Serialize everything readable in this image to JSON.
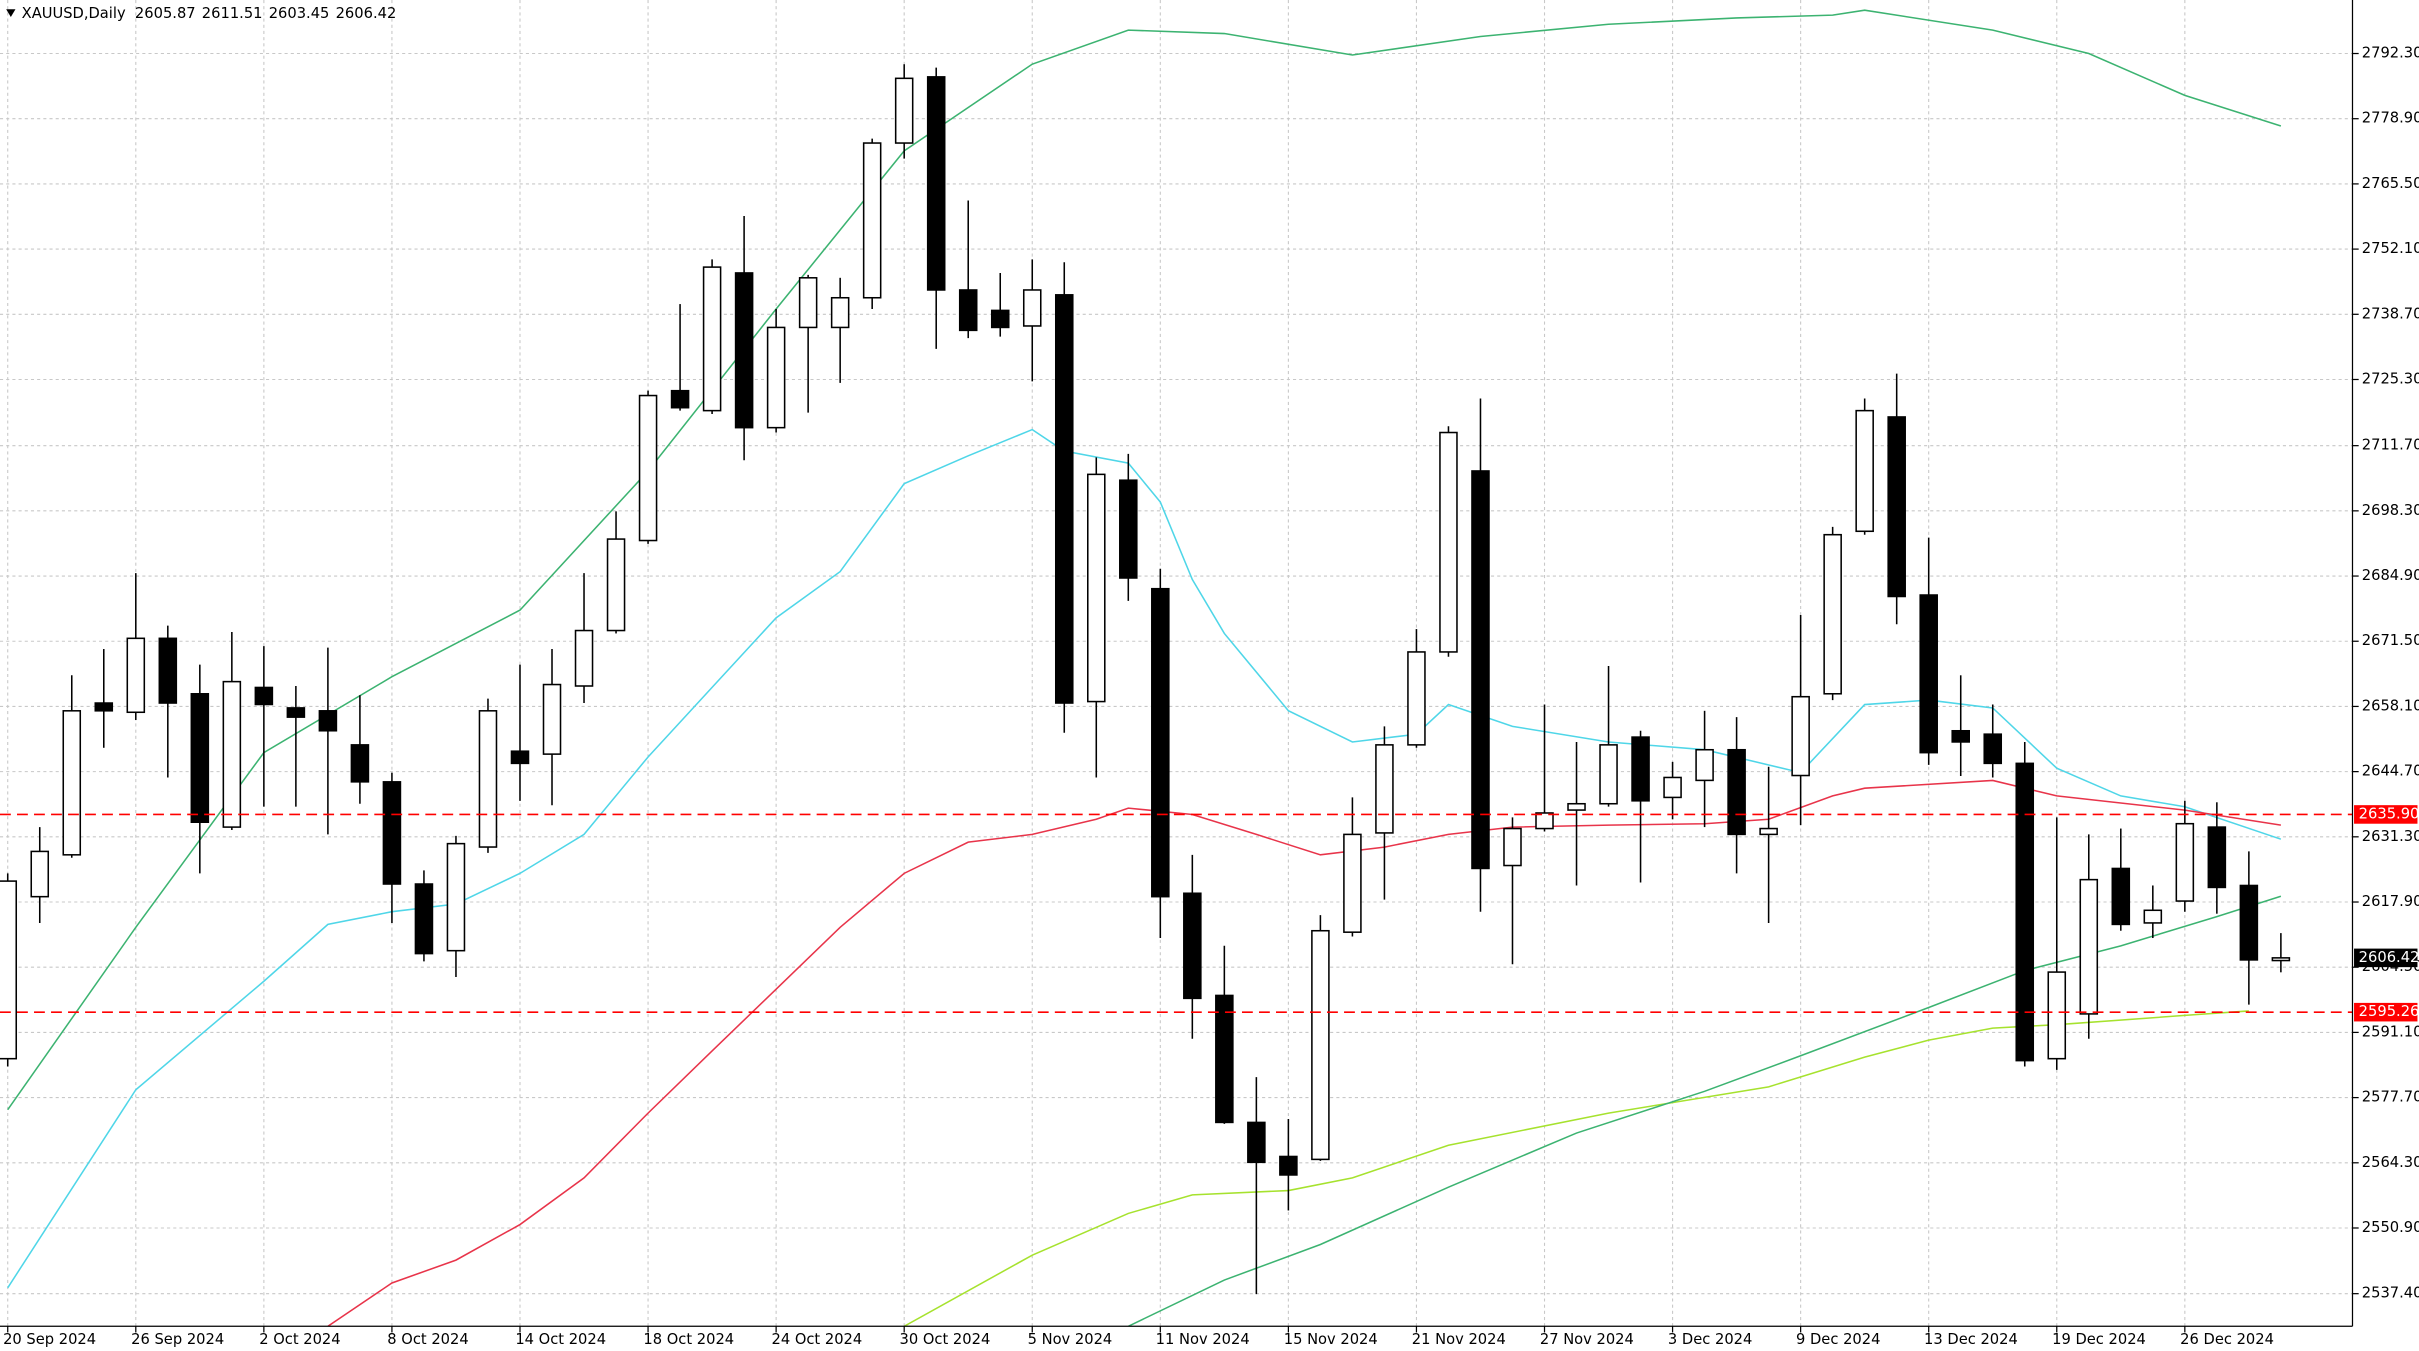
{
  "chart_data": {
    "type": "candlestick",
    "title": "XAUUSD,Daily",
    "categories": [
      "20 Sep 2024",
      null,
      null,
      null,
      "26 Sep 2024",
      null,
      null,
      null,
      "2 Oct 2024",
      null,
      null,
      null,
      "8 Oct 2024",
      null,
      null,
      null,
      "14 Oct 2024",
      null,
      null,
      null,
      "18 Oct 2024",
      null,
      null,
      null,
      "24 Oct 2024",
      null,
      null,
      null,
      "30 Oct 2024",
      null,
      null,
      null,
      "5 Nov 2024",
      null,
      null,
      null,
      "11 Nov 2024",
      null,
      null,
      null,
      "15 Nov 2024",
      null,
      null,
      null,
      "21 Nov 2024",
      null,
      null,
      null,
      "27 Nov 2024",
      null,
      null,
      null,
      "3 Dec 2024",
      null,
      null,
      null,
      "9 Dec 2024",
      null,
      null,
      null,
      "13 Dec 2024",
      null,
      null,
      null,
      "19 Dec 2024",
      null,
      null,
      null,
      "26 Dec 2024",
      null,
      null,
      null
    ],
    "open": [
      2585.7,
      2619.0,
      2627.6,
      2658.8,
      2656.9,
      2672.1,
      2660.7,
      2633.3,
      2662.0,
      2657.8,
      2657.2,
      2650.2,
      2642.6,
      2621.6,
      2607.9,
      2629.2,
      2648.9,
      2648.3,
      2662.3,
      2673.7,
      2692.2,
      2723.0,
      2718.9,
      2747.2,
      2715.4,
      2736.0,
      2736.0,
      2742.1,
      2773.9,
      2787.5,
      2743.7,
      2739.5,
      2736.3,
      2742.7,
      2659.1,
      2704.6,
      2682.3,
      2619.7,
      2598.7,
      2572.6,
      2565.6,
      2565.0,
      2611.7,
      2632.1,
      2650.2,
      2669.3,
      2706.5,
      2625.4,
      2633.0,
      2636.8,
      2638.1,
      2651.8,
      2639.4,
      2642.9,
      2649.2,
      2631.8,
      2643.9,
      2660.7,
      2694.1,
      2717.6,
      2681.0,
      2653.1,
      2652.4,
      2646.4,
      2585.7,
      2594.9,
      2624.8,
      2613.6,
      2618.1,
      2633.3,
      2621.3,
      2605.87
    ],
    "high": [
      2623.8,
      2633.3,
      2664.5,
      2669.9,
      2685.5,
      2674.7,
      2666.7,
      2673.4,
      2670.5,
      2662.3,
      2670.2,
      2660.4,
      2644.5,
      2624.4,
      2631.5,
      2659.7,
      2666.7,
      2669.9,
      2685.5,
      2698.2,
      2723.0,
      2740.8,
      2750.0,
      2758.9,
      2739.8,
      2746.8,
      2746.2,
      2774.8,
      2790.1,
      2789.4,
      2762.1,
      2747.2,
      2750.0,
      2749.4,
      2709.3,
      2710.0,
      2686.4,
      2627.6,
      2608.9,
      2581.9,
      2573.3,
      2615.2,
      2639.4,
      2654.0,
      2674.0,
      2715.7,
      2721.4,
      2635.3,
      2658.5,
      2650.8,
      2666.4,
      2653.1,
      2646.7,
      2657.2,
      2655.9,
      2645.7,
      2676.9,
      2695.0,
      2721.4,
      2726.5,
      2692.8,
      2664.5,
      2658.5,
      2650.8,
      2635.3,
      2631.8,
      2633.0,
      2621.3,
      2638.7,
      2638.4,
      2628.3,
      2611.51
    ],
    "low": [
      2584.1,
      2613.6,
      2627.0,
      2649.6,
      2655.3,
      2643.5,
      2623.8,
      2632.7,
      2637.5,
      2637.5,
      2631.8,
      2638.1,
      2613.6,
      2605.7,
      2602.5,
      2628.0,
      2638.7,
      2637.8,
      2658.8,
      2673.1,
      2691.5,
      2718.9,
      2718.2,
      2708.7,
      2714.4,
      2718.5,
      2724.6,
      2739.8,
      2770.7,
      2731.6,
      2733.8,
      2734.1,
      2724.9,
      2652.7,
      2643.5,
      2679.8,
      2610.5,
      2589.8,
      2572.3,
      2537.3,
      2554.5,
      2564.7,
      2610.8,
      2618.4,
      2649.6,
      2668.3,
      2615.9,
      2605.1,
      2632.4,
      2621.3,
      2637.5,
      2621.9,
      2634.9,
      2633.3,
      2623.8,
      2613.6,
      2633.7,
      2659.4,
      2693.4,
      2675.0,
      2646.1,
      2643.8,
      2643.5,
      2584.1,
      2583.4,
      2589.8,
      2612.0,
      2610.5,
      2615.9,
      2615.5,
      2596.8,
      2603.45
    ],
    "close": [
      2622.2,
      2628.3,
      2657.2,
      2657.2,
      2672.1,
      2658.8,
      2634.3,
      2663.2,
      2658.5,
      2655.9,
      2653.1,
      2642.6,
      2621.6,
      2607.3,
      2629.9,
      2657.2,
      2646.4,
      2662.6,
      2673.7,
      2692.5,
      2722.0,
      2719.5,
      2748.4,
      2715.4,
      2736.0,
      2746.2,
      2742.1,
      2773.9,
      2787.2,
      2743.7,
      2735.4,
      2736.0,
      2743.7,
      2658.8,
      2705.8,
      2684.5,
      2619.0,
      2598.1,
      2572.6,
      2564.4,
      2561.8,
      2612.0,
      2631.8,
      2650.2,
      2669.3,
      2714.4,
      2624.8,
      2633.0,
      2636.2,
      2638.1,
      2650.2,
      2638.7,
      2643.5,
      2649.2,
      2631.8,
      2633.0,
      2660.1,
      2693.4,
      2718.9,
      2680.7,
      2648.6,
      2650.8,
      2646.4,
      2585.3,
      2603.5,
      2622.5,
      2613.3,
      2616.2,
      2634.0,
      2620.9,
      2606.0,
      2606.42
    ],
    "up_color": "#ffffff",
    "down_color": "#000000",
    "overlays": [
      {
        "color": "#3cb371",
        "x": [
          0,
          4,
          8,
          12,
          16,
          20,
          24,
          28,
          32,
          35,
          38,
          42,
          46,
          50,
          54,
          57,
          58,
          62,
          65,
          68,
          71
        ],
        "values": [
          2575.2,
          2612.7,
          2648.6,
          2664.2,
          2677.9,
          2706.5,
          2739.8,
          2772.3,
          2790.1,
          2797.1,
          2796.4,
          2792.0,
          2795.8,
          2798.3,
          2799.6,
          2800.2,
          2801.2,
          2797.1,
          2792.3,
          2783.7,
          2777.4
        ]
      },
      {
        "color": "#4fd6e8",
        "x": [
          0,
          4,
          8,
          10,
          12,
          14,
          16,
          18,
          20,
          22,
          24,
          26,
          28,
          30,
          32,
          33,
          35,
          36,
          37,
          38,
          40,
          42,
          44,
          45,
          47,
          50,
          53,
          56,
          58,
          60,
          62,
          64,
          66,
          68,
          71
        ],
        "values": [
          2538.6,
          2579.3,
          2601.6,
          2613.3,
          2615.9,
          2617.5,
          2623.8,
          2631.8,
          2647.7,
          2662.0,
          2676.3,
          2685.8,
          2703.9,
          2709.6,
          2715.0,
          2710.6,
          2708.1,
          2700.1,
          2684.2,
          2673.1,
          2657.2,
          2650.8,
          2652.4,
          2658.5,
          2654.0,
          2650.8,
          2649.2,
          2644.5,
          2658.5,
          2659.4,
          2657.8,
          2645.4,
          2639.7,
          2637.5,
          2630.8
        ]
      },
      {
        "color": "#e8344a",
        "x": [
          10,
          12,
          14,
          16,
          18,
          20,
          22,
          24,
          26,
          28,
          30,
          32,
          34,
          35,
          37,
          39,
          41,
          43,
          45,
          47,
          50,
          53,
          55,
          57,
          58,
          62,
          64,
          68,
          71
        ],
        "values": [
          2530.7,
          2539.6,
          2544.3,
          2551.6,
          2561.2,
          2574.5,
          2587.3,
          2600.0,
          2612.7,
          2623.8,
          2630.2,
          2631.8,
          2634.9,
          2637.2,
          2635.9,
          2631.8,
          2627.6,
          2629.2,
          2631.8,
          2633.3,
          2633.7,
          2634.0,
          2634.9,
          2639.7,
          2641.3,
          2642.9,
          2639.7,
          2636.8,
          2633.7
        ]
      },
      {
        "color": "#a6e22e",
        "x": [
          28,
          32,
          35,
          37,
          40,
          42,
          45,
          50,
          55,
          58,
          60,
          62,
          64,
          68,
          70
        ],
        "values": [
          2530.7,
          2545.3,
          2553.9,
          2557.7,
          2558.6,
          2561.2,
          2567.9,
          2574.5,
          2579.9,
          2586.0,
          2589.5,
          2592.0,
          2592.7,
          2594.6,
          2595.5
        ]
      },
      {
        "color": "#3cb371",
        "x": [
          35,
          38,
          41,
          45,
          49,
          53,
          56,
          60,
          63,
          66,
          69,
          71
        ],
        "values": [
          2530.7,
          2540.2,
          2547.5,
          2559.3,
          2570.4,
          2579.0,
          2586.3,
          2596.2,
          2603.8,
          2608.9,
          2614.9,
          2619.1
        ]
      }
    ],
    "levels": [
      {
        "value": 2635.9,
        "label": "2635.90",
        "color": "#ff0000"
      },
      {
        "value": 2595.26,
        "label": "2595.26",
        "color": "#ff0000"
      }
    ],
    "ylim": [
      2530.7,
      2803.3
    ],
    "yticks": [
      {
        "value": 2792.3,
        "label": "2792.30"
      },
      {
        "value": 2778.9,
        "label": "2778.90"
      },
      {
        "value": 2765.5,
        "label": "2765.50"
      },
      {
        "value": 2752.1,
        "label": "2752.10"
      },
      {
        "value": 2738.7,
        "label": "2738.70"
      },
      {
        "value": 2725.3,
        "label": "2725.30"
      },
      {
        "value": 2711.7,
        "label": "2711.70"
      },
      {
        "value": 2698.3,
        "label": "2698.30"
      },
      {
        "value": 2684.9,
        "label": "2684.90"
      },
      {
        "value": 2671.5,
        "label": "2671.50"
      },
      {
        "value": 2658.1,
        "label": "2658.10"
      },
      {
        "value": 2644.7,
        "label": "2644.70"
      },
      {
        "value": 2631.3,
        "label": "2631.30"
      },
      {
        "value": 2617.9,
        "label": "2617.90"
      },
      {
        "value": 2604.5,
        "label": "2604.50"
      },
      {
        "value": 2591.1,
        "label": "2591.10"
      },
      {
        "value": 2577.7,
        "label": "2577.70"
      },
      {
        "value": 2564.3,
        "label": "2564.30"
      },
      {
        "value": 2550.9,
        "label": "2550.90"
      },
      {
        "value": 2537.4,
        "label": "2537.40"
      }
    ],
    "grid": true
  }
}
